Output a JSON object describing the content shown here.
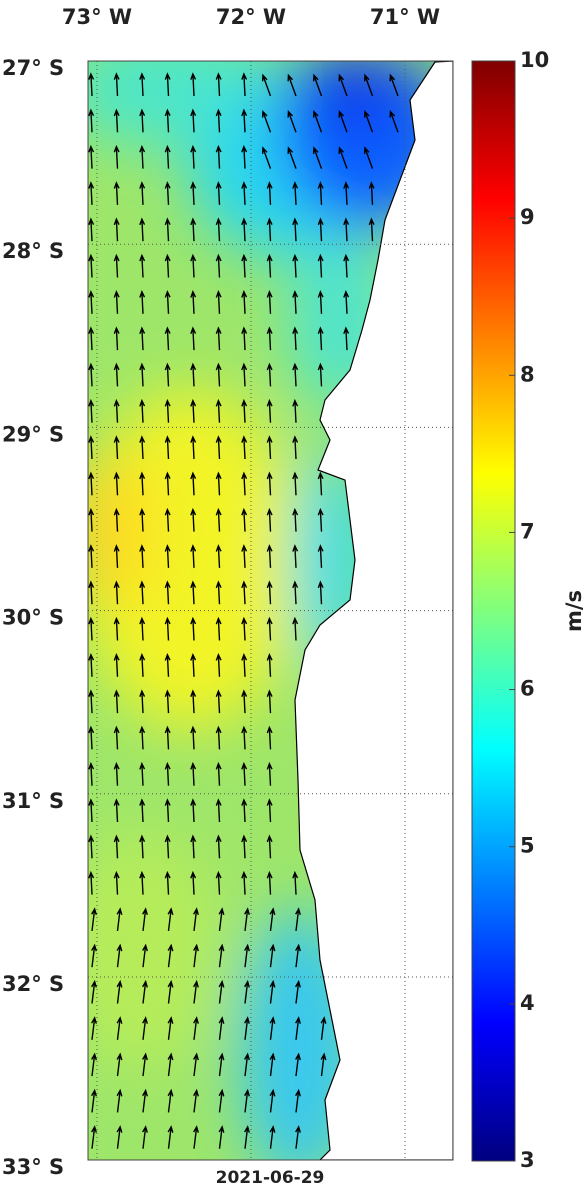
{
  "map": {
    "lon_ticks": [
      {
        "value": -73,
        "label": "73° W"
      },
      {
        "value": -72,
        "label": "72° W"
      },
      {
        "value": -71,
        "label": "71° W"
      }
    ],
    "lat_ticks": [
      {
        "value": -27,
        "label": "27° S"
      },
      {
        "value": -28,
        "label": "28° S"
      },
      {
        "value": -29,
        "label": "29° S"
      },
      {
        "value": -30,
        "label": "30° S"
      },
      {
        "value": -31,
        "label": "31° S"
      },
      {
        "value": -32,
        "label": "32° S"
      },
      {
        "value": -33,
        "label": "33° S"
      }
    ],
    "date": "2021-06-29",
    "colorbar": {
      "label": "m/s",
      "range": [
        3,
        10
      ],
      "ticks": [
        3,
        4,
        5,
        6,
        7,
        8,
        9,
        10
      ]
    }
  }
}
